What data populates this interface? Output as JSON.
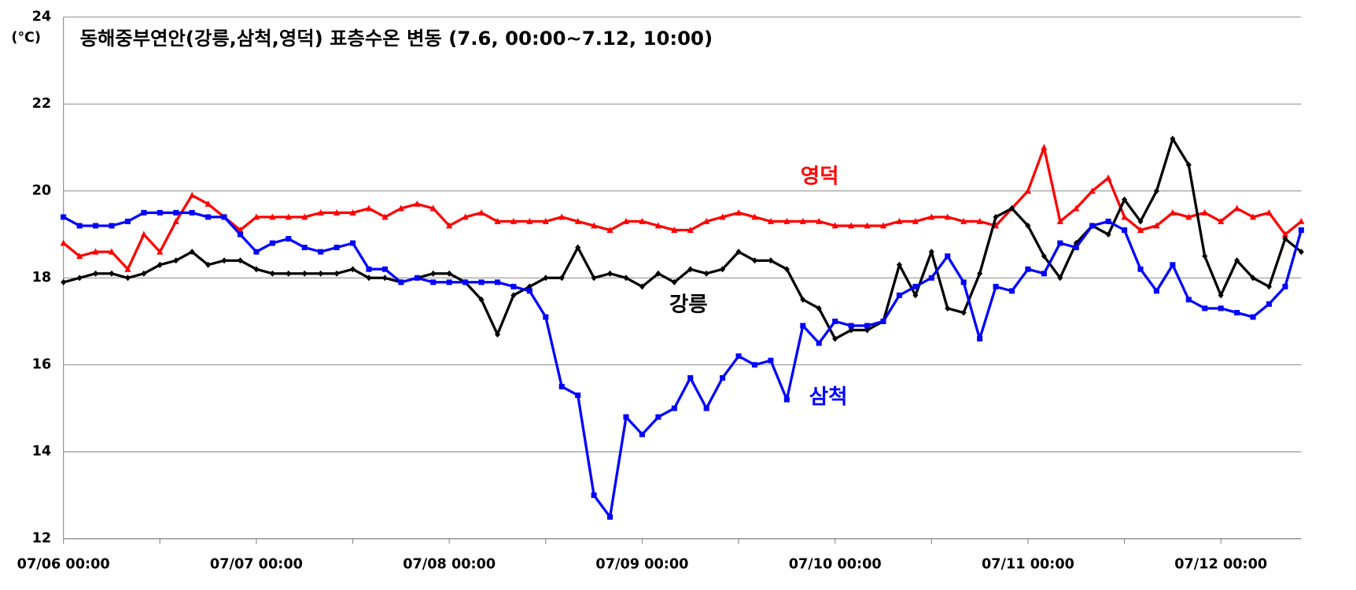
{
  "chart_data": {
    "type": "line",
    "title": "동해중부연안(강릉,삼척,영덕) 표층수온 변동 (7.6, 00:00~7.12, 10:00)",
    "y_label": "(℃)",
    "x": [
      "07/06 00:00",
      "07/06 02:00",
      "07/06 04:00",
      "07/06 06:00",
      "07/06 08:00",
      "07/06 10:00",
      "07/06 12:00",
      "07/06 14:00",
      "07/06 16:00",
      "07/06 18:00",
      "07/06 20:00",
      "07/06 22:00",
      "07/07 00:00",
      "07/07 02:00",
      "07/07 04:00",
      "07/07 06:00",
      "07/07 08:00",
      "07/07 10:00",
      "07/07 12:00",
      "07/07 14:00",
      "07/07 16:00",
      "07/07 18:00",
      "07/07 20:00",
      "07/07 22:00",
      "07/08 00:00",
      "07/08 02:00",
      "07/08 04:00",
      "07/08 06:00",
      "07/08 08:00",
      "07/08 10:00",
      "07/08 12:00",
      "07/08 14:00",
      "07/08 16:00",
      "07/08 18:00",
      "07/08 20:00",
      "07/08 22:00",
      "07/09 00:00",
      "07/09 02:00",
      "07/09 04:00",
      "07/09 06:00",
      "07/09 08:00",
      "07/09 10:00",
      "07/09 12:00",
      "07/09 14:00",
      "07/09 16:00",
      "07/09 18:00",
      "07/09 20:00",
      "07/09 22:00",
      "07/10 00:00",
      "07/10 02:00",
      "07/10 04:00",
      "07/10 06:00",
      "07/10 08:00",
      "07/10 10:00",
      "07/10 12:00",
      "07/10 14:00",
      "07/10 16:00",
      "07/10 18:00",
      "07/10 20:00",
      "07/10 22:00",
      "07/11 00:00",
      "07/11 02:00",
      "07/11 04:00",
      "07/11 06:00",
      "07/11 08:00",
      "07/11 10:00",
      "07/11 12:00",
      "07/11 14:00",
      "07/11 16:00",
      "07/11 18:00",
      "07/11 20:00",
      "07/11 22:00",
      "07/12 00:00",
      "07/12 02:00",
      "07/12 04:00",
      "07/12 06:00",
      "07/12 08:00",
      "07/12 10:00"
    ],
    "series": [
      {
        "name": "영덕",
        "color": "#ff0000",
        "marker": "triangle",
        "values": [
          18.8,
          18.5,
          18.6,
          18.6,
          18.2,
          19.0,
          18.6,
          19.3,
          19.9,
          19.7,
          19.4,
          19.1,
          19.4,
          19.4,
          19.4,
          19.4,
          19.5,
          19.5,
          19.5,
          19.6,
          19.4,
          19.6,
          19.7,
          19.6,
          19.2,
          19.4,
          19.5,
          19.3,
          19.3,
          19.3,
          19.3,
          19.4,
          19.3,
          19.2,
          19.1,
          19.3,
          19.3,
          19.2,
          19.1,
          19.1,
          19.3,
          19.4,
          19.5,
          19.4,
          19.3,
          19.3,
          19.3,
          19.3,
          19.2,
          19.2,
          19.2,
          19.2,
          19.3,
          19.3,
          19.4,
          19.4,
          19.3,
          19.3,
          19.2,
          19.6,
          20.0,
          21.0,
          19.3,
          19.6,
          20.0,
          20.3,
          19.4,
          19.1,
          19.2,
          19.5,
          19.4,
          19.5,
          19.3,
          19.6,
          19.4,
          19.5,
          19.0,
          19.3
        ]
      },
      {
        "name": "강릉",
        "color": "#000000",
        "marker": "diamond",
        "values": [
          17.9,
          18.0,
          18.1,
          18.1,
          18.0,
          18.1,
          18.3,
          18.4,
          18.6,
          18.3,
          18.4,
          18.4,
          18.2,
          18.1,
          18.1,
          18.1,
          18.1,
          18.1,
          18.2,
          18.0,
          18.0,
          17.9,
          18.0,
          18.1,
          18.1,
          17.9,
          17.5,
          16.7,
          17.6,
          17.8,
          18.0,
          18.0,
          18.7,
          18.0,
          18.1,
          18.0,
          17.8,
          18.1,
          17.9,
          18.2,
          18.1,
          18.2,
          18.6,
          18.4,
          18.4,
          18.2,
          17.5,
          17.3,
          16.6,
          16.8,
          16.8,
          17.0,
          18.3,
          17.6,
          18.6,
          17.3,
          17.2,
          18.1,
          19.4,
          19.6,
          19.2,
          18.5,
          18.0,
          18.8,
          19.2,
          19.0,
          19.8,
          19.3,
          20.0,
          21.2,
          20.6,
          18.5,
          17.6,
          18.4,
          18.0,
          17.8,
          18.9,
          18.6
        ]
      },
      {
        "name": "삼척",
        "color": "#0000ff",
        "marker": "square",
        "values": [
          19.4,
          19.2,
          19.2,
          19.2,
          19.3,
          19.5,
          19.5,
          19.5,
          19.5,
          19.4,
          19.4,
          19.0,
          18.6,
          18.8,
          18.9,
          18.7,
          18.6,
          18.7,
          18.8,
          18.2,
          18.2,
          17.9,
          18.0,
          17.9,
          17.9,
          17.9,
          17.9,
          17.9,
          17.8,
          17.7,
          17.1,
          15.5,
          15.3,
          13.0,
          12.5,
          14.8,
          14.4,
          14.8,
          15.0,
          15.7,
          15.0,
          15.7,
          16.2,
          16.0,
          16.1,
          15.2,
          16.9,
          16.5,
          17.0,
          16.9,
          16.9,
          17.0,
          17.6,
          17.8,
          18.0,
          18.5,
          17.9,
          16.6,
          17.8,
          17.7,
          18.2,
          18.1,
          18.8,
          18.7,
          19.2,
          19.3,
          19.1,
          18.2,
          17.7,
          18.3,
          17.5,
          17.3,
          17.3,
          17.2,
          17.1,
          17.4,
          17.8,
          19.1
        ]
      }
    ],
    "xlim": [
      "07/06 00:00",
      "07/12 10:00"
    ],
    "xticks": [
      "07/06 00:00",
      "07/07 00:00",
      "07/08 00:00",
      "07/09 00:00",
      "07/10 00:00",
      "07/11 00:00",
      "07/12 00:00"
    ],
    "ylim": [
      12,
      24
    ],
    "yticks": [
      12,
      14,
      16,
      18,
      20,
      22,
      24
    ],
    "grid": true
  }
}
